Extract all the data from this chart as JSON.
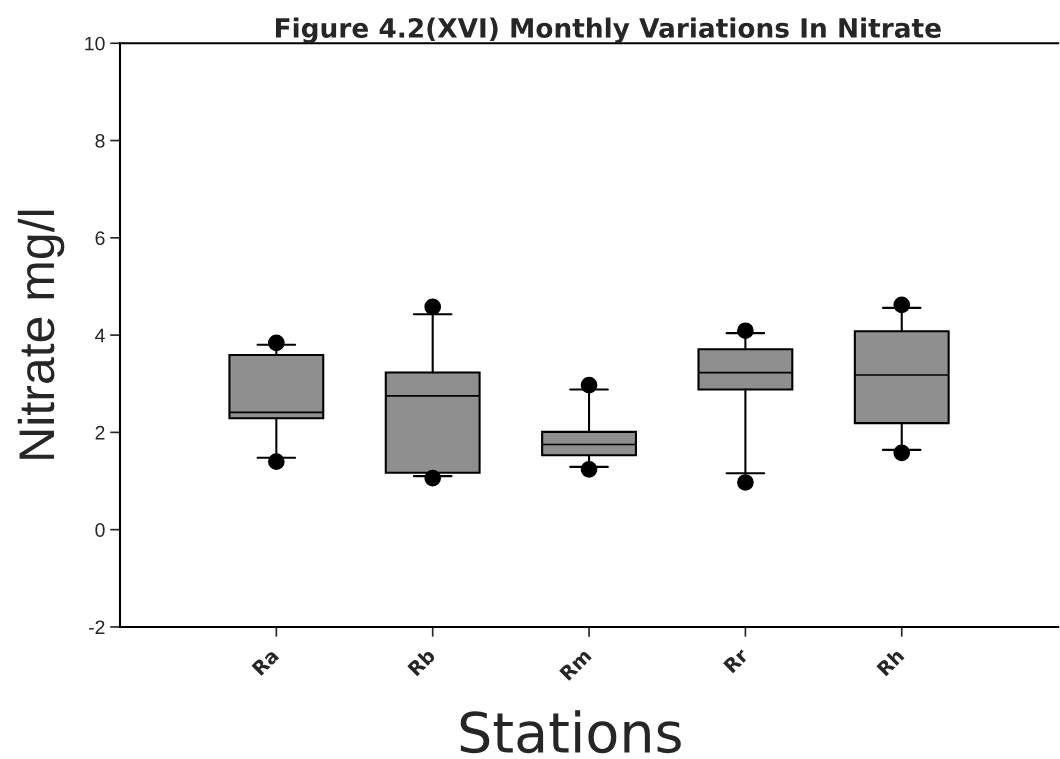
{
  "chart_data": {
    "type": "box",
    "title": "Figure 4.2(XVI) Monthly Variations In Nitrate",
    "xlabel": "Stations",
    "ylabel": "Nitrate mg/l",
    "categories": [
      "Ra",
      "Rb",
      "Rm",
      "Rr",
      "Rh"
    ],
    "color": "#8f8f8f",
    "boxes": [
      {
        "low": 1.48,
        "q1": 2.29,
        "median": 2.41,
        "q3": 3.59,
        "high": 3.8,
        "outliers": [
          1.4,
          3.84
        ]
      },
      {
        "low": 1.1,
        "q1": 1.17,
        "median": 2.75,
        "q3": 3.23,
        "high": 4.43,
        "outliers": [
          1.06,
          4.58
        ]
      },
      {
        "low": 1.29,
        "q1": 1.53,
        "median": 1.75,
        "q3": 2.01,
        "high": 2.88,
        "outliers": [
          1.24,
          2.97
        ]
      },
      {
        "low": 1.16,
        "q1": 2.88,
        "median": 3.23,
        "q3": 3.71,
        "high": 4.04,
        "outliers": [
          0.97,
          4.09
        ]
      },
      {
        "low": 1.64,
        "q1": 2.19,
        "median": 3.18,
        "q3": 4.08,
        "high": 4.56,
        "outliers": [
          1.58,
          4.62
        ]
      }
    ],
    "ylim": [
      -2,
      10
    ],
    "yticks": [
      -2,
      0,
      2,
      4,
      6,
      8,
      10
    ]
  }
}
